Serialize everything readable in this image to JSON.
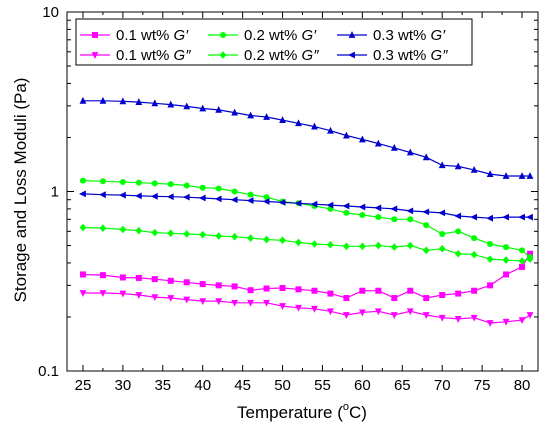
{
  "chart_data": {
    "type": "line",
    "xlabel": "Temperature (",
    "xlabel_unit_sup": "o",
    "xlabel_unit_tail": "C)",
    "ylabel": "Storage and Loss Moduli (Pa)",
    "xlim": [
      23,
      82
    ],
    "ylim": [
      0.1,
      10
    ],
    "yscale": "log",
    "xticks": [
      25,
      30,
      35,
      40,
      45,
      50,
      55,
      60,
      65,
      70,
      75,
      80
    ],
    "ytick_labels": [
      {
        "value": 0.1,
        "label": "0.1"
      },
      {
        "value": 1,
        "label": "1"
      },
      {
        "value": 10,
        "label": "10"
      }
    ],
    "legend_position": "top",
    "x": [
      25,
      27.5,
      30,
      32,
      34,
      36,
      38,
      40,
      42,
      44,
      46,
      48,
      50,
      52,
      54,
      56,
      58,
      60,
      62,
      64,
      66,
      68,
      70,
      72,
      74,
      76,
      78,
      80,
      81
    ],
    "series": [
      {
        "name": "0.1 wt% G′",
        "label_prefix": "0.1 wt% ",
        "label_symbol": "G′",
        "color": "#ff00ff",
        "marker": "square",
        "values": [
          0.345,
          0.342,
          0.332,
          0.33,
          0.325,
          0.318,
          0.312,
          0.305,
          0.3,
          0.296,
          0.282,
          0.288,
          0.29,
          0.285,
          0.28,
          0.27,
          0.255,
          0.28,
          0.28,
          0.255,
          0.28,
          0.255,
          0.265,
          0.27,
          0.28,
          0.3,
          0.345,
          0.38,
          0.45
        ]
      },
      {
        "name": "0.1 wt% G″",
        "label_prefix": "0.1 wt% ",
        "label_symbol": "G″",
        "color": "#ff00ff",
        "marker": "triangle-down",
        "values": [
          0.272,
          0.272,
          0.27,
          0.265,
          0.258,
          0.255,
          0.25,
          0.245,
          0.245,
          0.24,
          0.24,
          0.24,
          0.23,
          0.225,
          0.222,
          0.215,
          0.205,
          0.212,
          0.215,
          0.205,
          0.215,
          0.205,
          0.198,
          0.195,
          0.198,
          0.185,
          0.188,
          0.192,
          0.205
        ]
      },
      {
        "name": "0.2 wt% G′",
        "label_prefix": "0.2 wt% ",
        "label_symbol": "G′",
        "color": "#00ff00",
        "marker": "circle",
        "values": [
          1.15,
          1.14,
          1.13,
          1.12,
          1.11,
          1.1,
          1.08,
          1.05,
          1.04,
          1.0,
          0.96,
          0.93,
          0.88,
          0.86,
          0.83,
          0.8,
          0.76,
          0.74,
          0.72,
          0.7,
          0.7,
          0.65,
          0.58,
          0.6,
          0.55,
          0.51,
          0.49,
          0.47,
          0.43
        ]
      },
      {
        "name": "0.2 wt% G″",
        "label_prefix": "0.2 wt% ",
        "label_symbol": "G″",
        "color": "#00ff00",
        "marker": "diamond",
        "values": [
          0.63,
          0.625,
          0.615,
          0.605,
          0.59,
          0.585,
          0.58,
          0.575,
          0.565,
          0.56,
          0.55,
          0.54,
          0.535,
          0.52,
          0.51,
          0.505,
          0.495,
          0.495,
          0.5,
          0.49,
          0.5,
          0.47,
          0.48,
          0.45,
          0.445,
          0.42,
          0.415,
          0.41,
          0.42
        ]
      },
      {
        "name": "0.3 wt% G′",
        "label_prefix": "0.3 wt% ",
        "label_symbol": "G′",
        "color": "#0000cc",
        "marker": "triangle-up",
        "values": [
          3.2,
          3.2,
          3.18,
          3.15,
          3.1,
          3.05,
          2.98,
          2.9,
          2.85,
          2.75,
          2.65,
          2.6,
          2.5,
          2.4,
          2.3,
          2.18,
          2.05,
          1.95,
          1.85,
          1.75,
          1.65,
          1.55,
          1.4,
          1.38,
          1.32,
          1.25,
          1.22,
          1.22,
          1.22
        ]
      },
      {
        "name": "0.3 wt% G″",
        "label_prefix": "0.3 wt% ",
        "label_symbol": "G″",
        "color": "#0000cc",
        "marker": "triangle-left",
        "values": [
          0.97,
          0.96,
          0.955,
          0.945,
          0.94,
          0.935,
          0.93,
          0.92,
          0.91,
          0.9,
          0.89,
          0.88,
          0.87,
          0.86,
          0.85,
          0.84,
          0.83,
          0.82,
          0.81,
          0.8,
          0.78,
          0.77,
          0.76,
          0.73,
          0.72,
          0.71,
          0.72,
          0.72,
          0.72
        ]
      }
    ]
  }
}
